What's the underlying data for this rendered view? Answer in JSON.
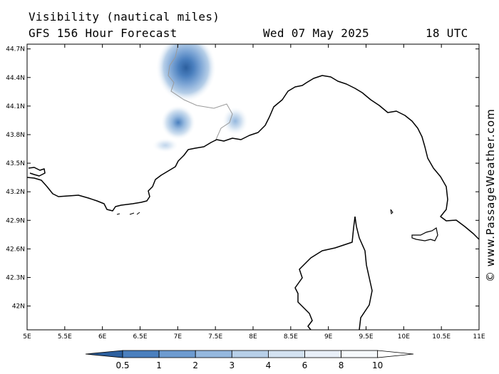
{
  "header": {
    "title": "Visibility (nautical miles)",
    "model": "GFS 156 Hour Forecast",
    "date": "Wed 07 May 2025",
    "time": "18 UTC"
  },
  "map": {
    "lon_range": [
      5,
      11
    ],
    "lat_range": [
      41.75,
      44.75
    ],
    "lon_ticks": [
      {
        "v": 5,
        "label": "5E"
      },
      {
        "v": 5.5,
        "label": "5.5E"
      },
      {
        "v": 6,
        "label": "6E"
      },
      {
        "v": 6.5,
        "label": "6.5E"
      },
      {
        "v": 7,
        "label": "7E"
      },
      {
        "v": 7.5,
        "label": "7.5E"
      },
      {
        "v": 8,
        "label": "8E"
      },
      {
        "v": 8.5,
        "label": "8.5E"
      },
      {
        "v": 9,
        "label": "9E"
      },
      {
        "v": 9.5,
        "label": "9.5E"
      },
      {
        "v": 10,
        "label": "10E"
      },
      {
        "v": 10.5,
        "label": "10.5E"
      },
      {
        "v": 11,
        "label": "11E"
      }
    ],
    "lat_ticks": [
      {
        "v": 44.7,
        "label": "44.7N"
      },
      {
        "v": 44.4,
        "label": "44.4N"
      },
      {
        "v": 44.1,
        "label": "44.1N"
      },
      {
        "v": 43.8,
        "label": "43.8N"
      },
      {
        "v": 43.5,
        "label": "43.5N"
      },
      {
        "v": 43.2,
        "label": "43.2N"
      },
      {
        "v": 42.9,
        "label": "42.9N"
      },
      {
        "v": 42.6,
        "label": "42.6N"
      },
      {
        "v": 42.3,
        "label": "42.3N"
      },
      {
        "v": 42,
        "label": "42N"
      }
    ],
    "colors": {
      "coast": "#000000",
      "border": "#9a9a9a",
      "levels": [
        "#2c5f9e",
        "#4a7fbe",
        "#6d9bd0",
        "#95b8de",
        "#b7cfe8",
        "#d3e2f1",
        "#e8eff8",
        "#f6f9fc"
      ]
    },
    "colorbar": {
      "labels": [
        "0.5",
        "1",
        "2",
        "3",
        "4",
        "6",
        "8",
        "10"
      ]
    },
    "credit": "© www.PassageWeather.com"
  }
}
